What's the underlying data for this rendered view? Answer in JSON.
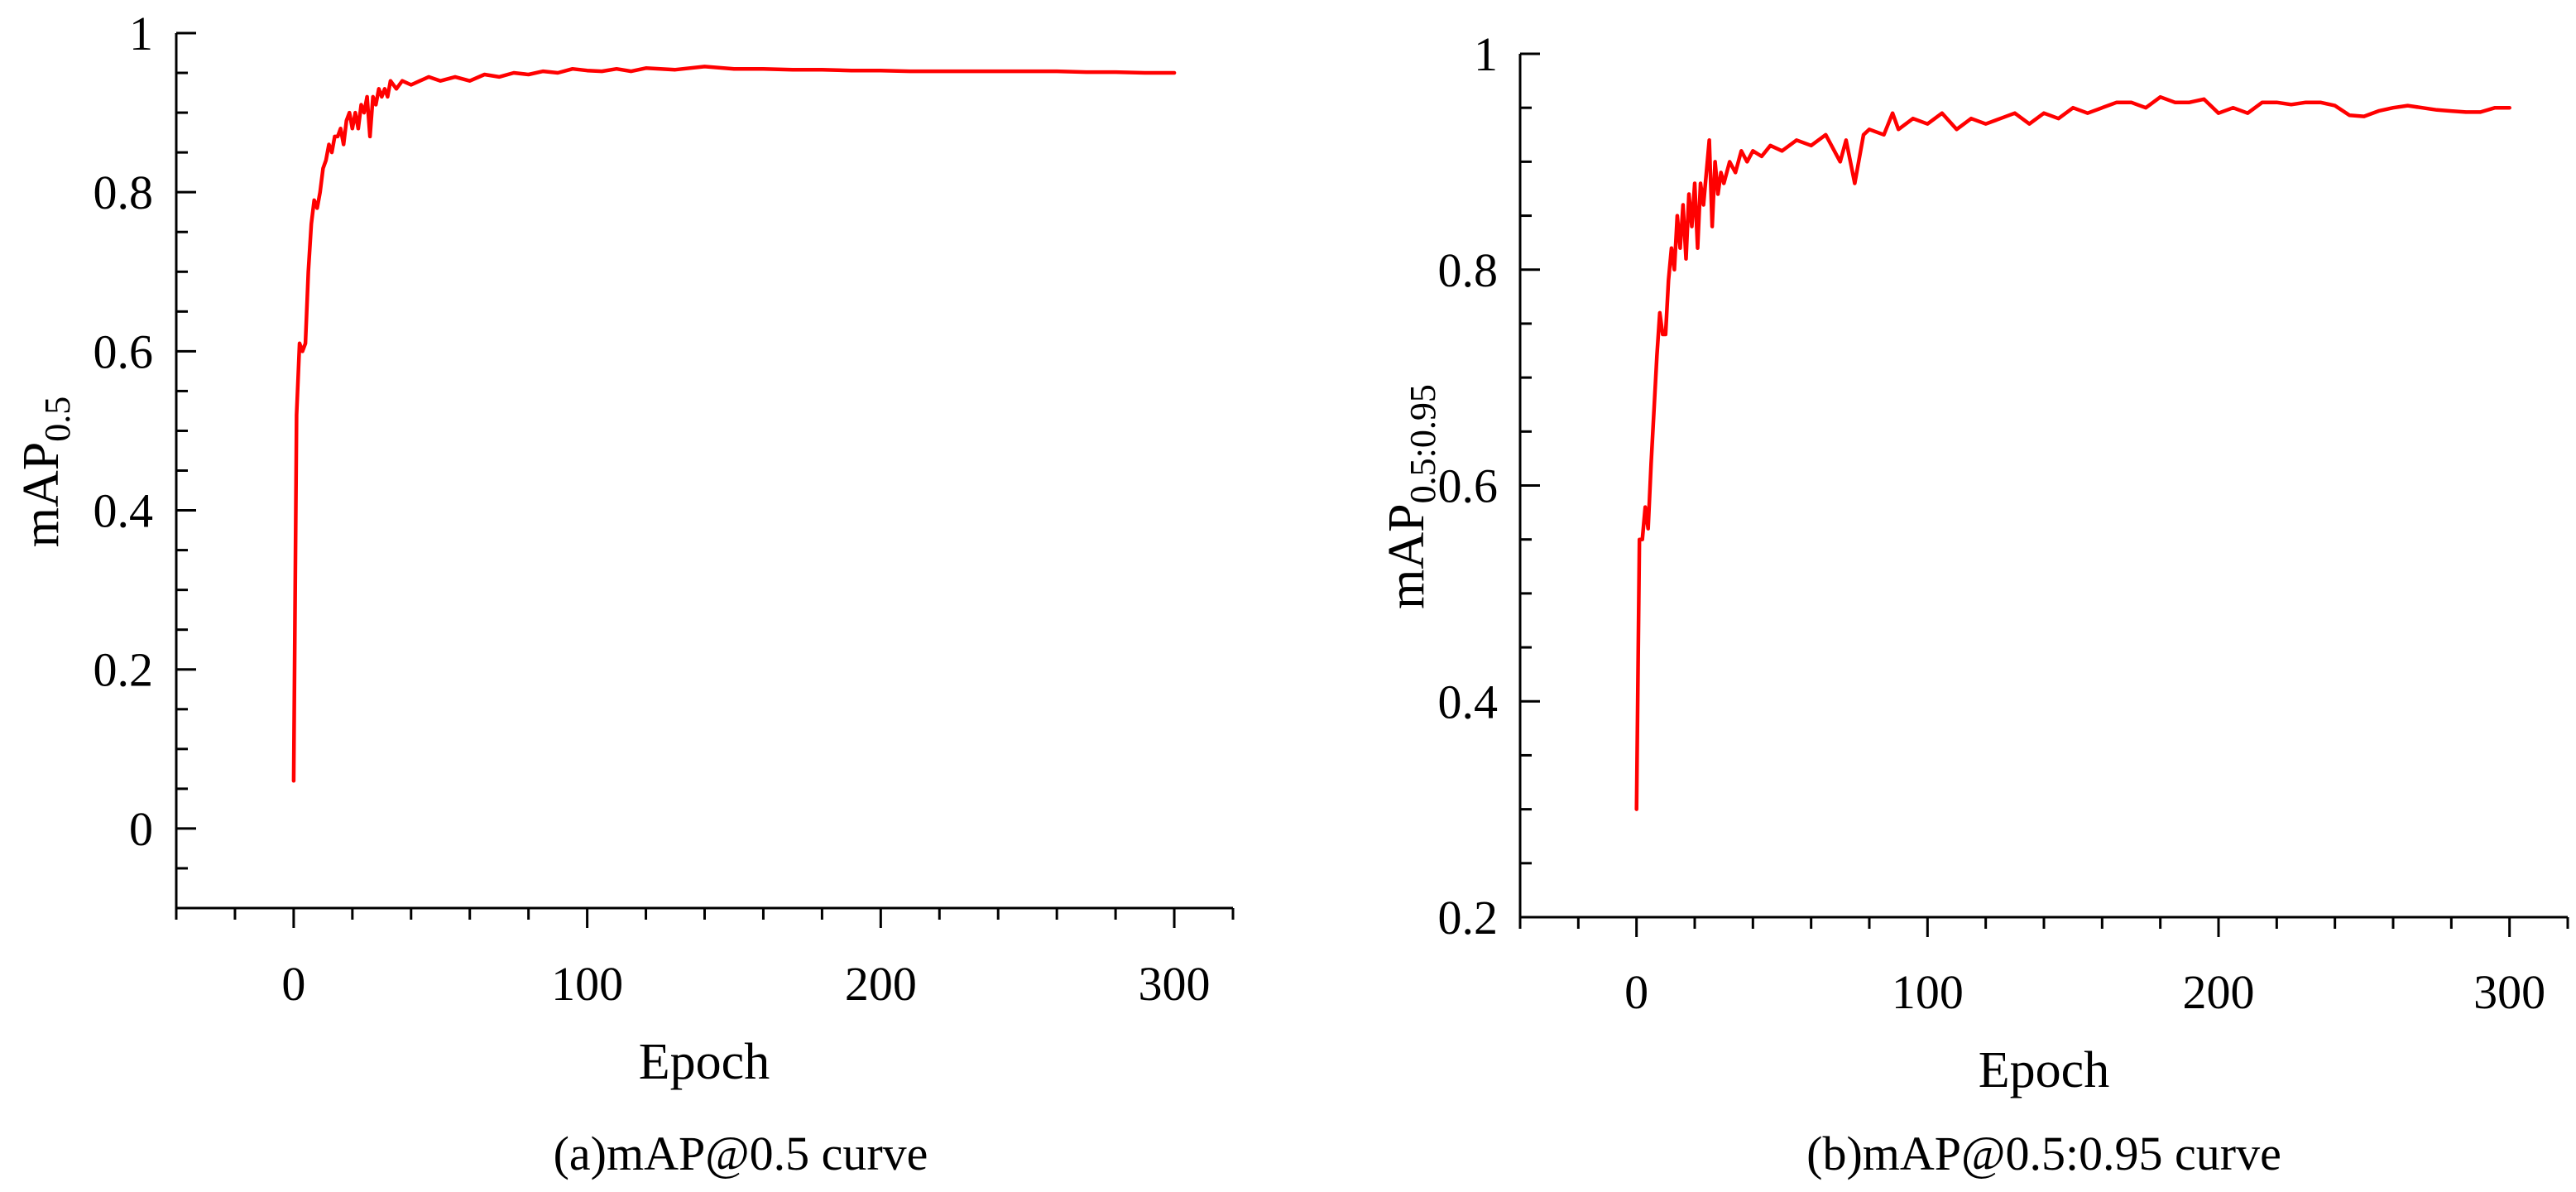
{
  "chart_data": [
    {
      "type": "line",
      "caption": "(a)mAP@0.5 curve",
      "xlabel": "Epoch",
      "ylabel_main": "mAP",
      "ylabel_sub": "0.5",
      "xlim": [
        -40,
        320
      ],
      "ylim": [
        -0.1,
        1.0
      ],
      "xticks": [
        0,
        100,
        200,
        300
      ],
      "yticks": [
        0,
        0.2,
        0.4,
        0.6,
        0.8,
        1
      ],
      "ytick_labels": [
        "0",
        "0.2",
        "0.4",
        "0.6",
        "0.8",
        "1"
      ],
      "xtick_labels": [
        "0",
        "100",
        "200",
        "300"
      ],
      "grid": false,
      "series_color": "#ff0000",
      "series": [
        {
          "x": [
            0,
            1,
            2,
            3,
            4,
            5,
            6,
            7,
            8,
            9,
            10,
            11,
            12,
            13,
            14,
            15,
            16,
            17,
            18,
            19,
            20,
            21,
            22,
            23,
            24,
            25,
            26,
            27,
            28,
            29,
            30,
            31,
            32,
            33,
            35,
            37,
            40,
            43,
            46,
            50,
            55,
            60,
            65,
            70,
            75,
            80,
            85,
            90,
            95,
            100,
            105,
            110,
            115,
            120,
            130,
            140,
            150,
            160,
            170,
            180,
            190,
            200,
            210,
            220,
            230,
            240,
            250,
            260,
            270,
            280,
            290,
            300
          ],
          "values": [
            0.06,
            0.52,
            0.61,
            0.6,
            0.61,
            0.7,
            0.76,
            0.79,
            0.78,
            0.8,
            0.83,
            0.84,
            0.86,
            0.85,
            0.87,
            0.87,
            0.88,
            0.86,
            0.89,
            0.9,
            0.88,
            0.9,
            0.88,
            0.91,
            0.9,
            0.92,
            0.87,
            0.92,
            0.91,
            0.93,
            0.92,
            0.93,
            0.92,
            0.94,
            0.93,
            0.94,
            0.935,
            0.94,
            0.945,
            0.94,
            0.945,
            0.94,
            0.948,
            0.945,
            0.95,
            0.948,
            0.952,
            0.95,
            0.955,
            0.953,
            0.952,
            0.955,
            0.952,
            0.956,
            0.954,
            0.958,
            0.955,
            0.955,
            0.954,
            0.954,
            0.953,
            0.953,
            0.952,
            0.952,
            0.952,
            0.952,
            0.952,
            0.952,
            0.951,
            0.951,
            0.95,
            0.95
          ]
        }
      ]
    },
    {
      "type": "line",
      "caption": "(b)mAP@0.5:0.95 curve",
      "xlabel": "Epoch",
      "ylabel_main": "mAP",
      "ylabel_sub": "0.5:0.95",
      "xlim": [
        -40,
        320
      ],
      "ylim": [
        0.2,
        1.0
      ],
      "xticks": [
        0,
        100,
        200,
        300
      ],
      "yticks": [
        0.2,
        0.4,
        0.6,
        0.8,
        1
      ],
      "ytick_labels": [
        "0.2",
        "0.4",
        "0.6",
        "0.8",
        "1"
      ],
      "xtick_labels": [
        "0",
        "100",
        "200",
        "300"
      ],
      "grid": false,
      "series_color": "#ff0000",
      "series": [
        {
          "x": [
            0,
            1,
            2,
            3,
            4,
            5,
            6,
            7,
            8,
            9,
            10,
            11,
            12,
            13,
            14,
            15,
            16,
            17,
            18,
            19,
            20,
            21,
            22,
            23,
            24,
            25,
            26,
            27,
            28,
            29,
            30,
            32,
            34,
            36,
            38,
            40,
            43,
            46,
            50,
            55,
            60,
            65,
            70,
            72,
            75,
            78,
            80,
            85,
            88,
            90,
            95,
            100,
            105,
            110,
            115,
            120,
            125,
            130,
            135,
            140,
            145,
            150,
            155,
            160,
            165,
            170,
            175,
            180,
            185,
            190,
            195,
            200,
            205,
            210,
            215,
            220,
            225,
            230,
            235,
            240,
            245,
            250,
            255,
            260,
            265,
            270,
            275,
            280,
            285,
            290,
            295,
            300
          ],
          "values": [
            0.3,
            0.55,
            0.55,
            0.58,
            0.56,
            0.62,
            0.67,
            0.72,
            0.76,
            0.74,
            0.74,
            0.79,
            0.82,
            0.8,
            0.85,
            0.82,
            0.86,
            0.81,
            0.87,
            0.84,
            0.88,
            0.82,
            0.88,
            0.86,
            0.89,
            0.92,
            0.84,
            0.9,
            0.87,
            0.89,
            0.88,
            0.9,
            0.89,
            0.91,
            0.9,
            0.91,
            0.905,
            0.915,
            0.91,
            0.92,
            0.915,
            0.925,
            0.9,
            0.92,
            0.88,
            0.925,
            0.93,
            0.925,
            0.945,
            0.93,
            0.94,
            0.935,
            0.945,
            0.93,
            0.94,
            0.935,
            0.94,
            0.945,
            0.935,
            0.945,
            0.94,
            0.95,
            0.945,
            0.95,
            0.955,
            0.955,
            0.95,
            0.96,
            0.955,
            0.955,
            0.958,
            0.945,
            0.95,
            0.945,
            0.955,
            0.955,
            0.953,
            0.955,
            0.955,
            0.952,
            0.943,
            0.942,
            0.947,
            0.95,
            0.952,
            0.95,
            0.948,
            0.947,
            0.946,
            0.946,
            0.95,
            0.95
          ]
        }
      ]
    }
  ]
}
